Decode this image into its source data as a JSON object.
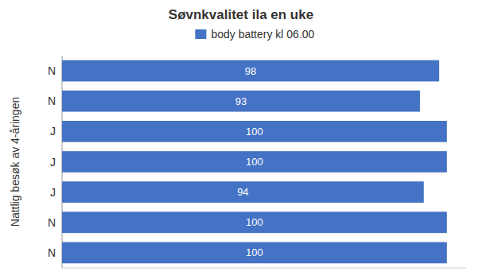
{
  "chart_data": {
    "type": "bar",
    "orientation": "horizontal",
    "title": "Søvnkvalitet ila en uke",
    "ylabel": "Nattlig besøk av 4-åringen",
    "categories": [
      "N",
      "N",
      "J",
      "J",
      "J",
      "N",
      "N"
    ],
    "series": [
      {
        "name": "body battery kl 06.00",
        "color": "#4472C4",
        "values": [
          98,
          93,
          100,
          100,
          94,
          100,
          100
        ]
      }
    ],
    "xlim": [
      0,
      105
    ],
    "data_labels": true,
    "tick_labels": "y",
    "legend": "top",
    "grid": false
  }
}
